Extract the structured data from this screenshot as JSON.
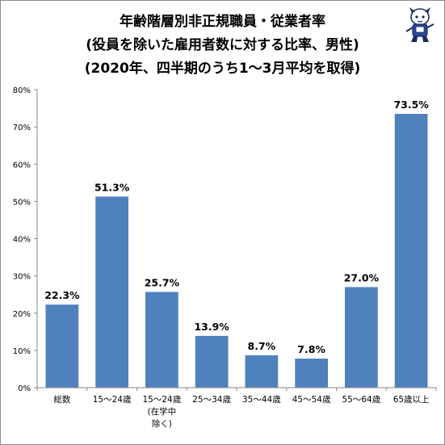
{
  "chart_data": {
    "type": "bar",
    "title": [
      "年齢階層別非正規職員・従業者率",
      "(役員を除いた雇用者数に対する比率、男性)",
      "(2020年、四半期のうち1～3月平均を取得)"
    ],
    "categories": [
      [
        "総数"
      ],
      [
        "15～24歳"
      ],
      [
        "15～24歳",
        "(在学中",
        "除く)"
      ],
      [
        "25～34歳"
      ],
      [
        "35～44歳"
      ],
      [
        "45～54歳"
      ],
      [
        "55～64歳"
      ],
      [
        "65歳以上"
      ]
    ],
    "values": [
      22.3,
      51.3,
      25.7,
      13.9,
      8.7,
      7.8,
      27.0,
      73.5
    ],
    "data_labels": [
      "22.3%",
      "51.3%",
      "25.7%",
      "13.9%",
      "8.7%",
      "7.8%",
      "27.0%",
      "73.5%"
    ],
    "ylim": [
      0,
      80
    ],
    "yticks": [
      0,
      10,
      20,
      30,
      40,
      50,
      60,
      70,
      80
    ],
    "ytick_labels": [
      "0%",
      "10%",
      "20%",
      "30%",
      "40%",
      "50%",
      "60%",
      "70%",
      "80%"
    ],
    "grid": false,
    "legend": "none",
    "bar_color": "#4f81bd"
  }
}
